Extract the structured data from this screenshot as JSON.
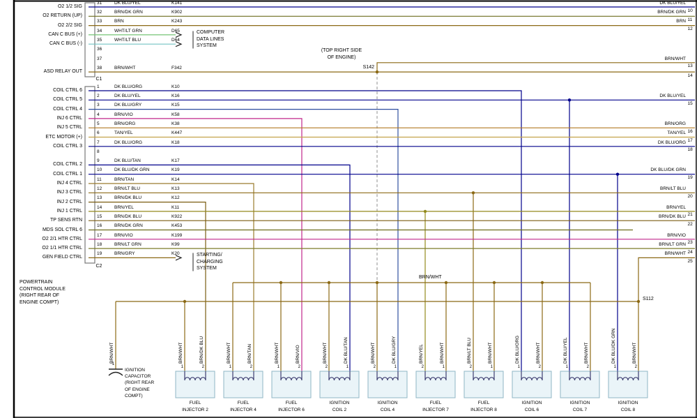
{
  "colors": {
    "DK BLU/YEL": "#00008B",
    "DK BLU/ORG": "#00008B",
    "DK BLU/GRY": "#2F4F9F",
    "DK BLU/TAN": "#00008B",
    "DK BLU/DK GRN": "#00008B",
    "BRN": "#8B6914",
    "BRN/WHT": "#8B6914",
    "BRN/DK GRN": "#6E6E1E",
    "BRN/ORG": "#B07820",
    "BRN/TAN": "#9A7B2D",
    "BRN/YEL": "#938A1C",
    "BRN/VIO": "#C2268B",
    "BRN/LT BLU": "#8B6914",
    "BRN/DK BLU": "#7A5C10",
    "BRN/GRY": "#8B6914",
    "BRN/LT GRN": "#7E7E2A",
    "TAN/YEL": "#C3A24B",
    "WHT/LT GRN": "#74C474",
    "WHT/LT BLU": "#74C4C4"
  },
  "pcm": {
    "c1_label": "C1",
    "c2_label": "C2",
    "title_lines": [
      "POWERTRAIN",
      "CONTROL MODULE",
      "(RIGHT REAR OF",
      "ENGINE COMPT)"
    ],
    "c1_rows": [
      {
        "pin": "31",
        "label": "O2 1/2 SIG",
        "color": "DK BLU/YEL",
        "code": "K141",
        "to": "edge",
        "num": "10"
      },
      {
        "pin": "32",
        "label": "O2 RETURN (UP)",
        "color": "BRN/DK GRN",
        "code": "K902",
        "to": "edge",
        "num": "11"
      },
      {
        "pin": "33",
        "label": "O2 2/2 SIG",
        "color": "BRN",
        "code": "K243",
        "to": "edge",
        "num": "12"
      },
      {
        "pin": "34",
        "label": "CAN C BUS (+)",
        "color": "WHT/LT GRN",
        "code": "D65",
        "to": "arrow"
      },
      {
        "pin": "35",
        "label": "CAN C BUS (-)",
        "color": "WHT/LT BLU",
        "code": "D64",
        "to": "arrow"
      },
      {
        "pin": "36"
      },
      {
        "pin": "37"
      },
      {
        "pin": "38",
        "label": "ASD RELAY OUT",
        "color": "BRN/WHT",
        "code": "F342",
        "to": "s142",
        "edge_label": "BRN/WHT",
        "num_upper": "13",
        "num_lower": "14"
      }
    ],
    "c2_rows": [
      {
        "pin": "1",
        "label": "COIL CTRL 6",
        "color": "DK BLU/ORG",
        "code": "K10",
        "to": "drop",
        "comp": 7
      },
      {
        "pin": "2",
        "label": "COIL CTRL 5",
        "color": "DK BLU/YEL",
        "code": "K16",
        "to": "edge+drop",
        "num": "15",
        "comp": 8
      },
      {
        "pin": "3",
        "label": "COIL CTRL 4",
        "color": "DK BLU/GRY",
        "code": "K15",
        "to": "drop",
        "comp": 4
      },
      {
        "pin": "4",
        "label": "INJ 6 CTRL",
        "color": "BRN/VIO",
        "code": "K58",
        "to": "drop",
        "comp": 2
      },
      {
        "pin": "5",
        "label": "INJ 5 CTRL",
        "color": "BRN/ORG",
        "code": "K38",
        "to": "edge",
        "num": "16"
      },
      {
        "pin": "6",
        "label": "ETC MOTOR (+)",
        "color": "TAN/YEL",
        "code": "K447",
        "to": "edge",
        "num": "17"
      },
      {
        "pin": "7",
        "label": "COIL CTRL 3",
        "color": "DK BLU/ORG",
        "code": "K18",
        "to": "edge",
        "num": "18"
      },
      {
        "pin": "8"
      },
      {
        "pin": "9",
        "label": "COIL CTRL 2",
        "color": "DK BLU/TAN",
        "code": "K17",
        "to": "drop",
        "comp": 3
      },
      {
        "pin": "10",
        "label": "COIL CTRL 1",
        "color": "DK BLU/DK GRN",
        "code": "K19",
        "to": "edge+drop",
        "num": "19",
        "comp": 9
      },
      {
        "pin": "11",
        "label": "INJ 4 CTRL",
        "color": "BRN/TAN",
        "code": "K14",
        "to": "drop",
        "comp": 1
      },
      {
        "pin": "12",
        "label": "INJ 3 CTRL",
        "color": "BRN/LT BLU",
        "code": "K13",
        "to": "edge+drop",
        "num": "20",
        "comp": 6
      },
      {
        "pin": "13",
        "label": "INJ 2 CTRL",
        "color": "BRN/DK BLU",
        "code": "K12",
        "to": "drop",
        "comp": 0
      },
      {
        "pin": "14",
        "label": "INJ 1 CTRL",
        "color": "BRN/YEL",
        "code": "K11",
        "to": "edge+drop",
        "num": "21",
        "comp": 5
      },
      {
        "pin": "15",
        "label": "TP SENS RTN",
        "color": "BRN/DK BLU",
        "code": "K922",
        "to": "edge",
        "num": "22"
      },
      {
        "pin": "16",
        "label": "MDS SOL CTRL 6",
        "color": "BRN/DK GRN",
        "code": "K453",
        "to": "end"
      },
      {
        "pin": "17",
        "label": "O2 2/1 HTR CTRL",
        "color": "BRN/VIO",
        "code": "K199",
        "to": "edge",
        "num": "23"
      },
      {
        "pin": "18",
        "label": "O2 1/1 HTR CTRL",
        "color": "BRN/LT GRN",
        "code": "K99",
        "to": "edge",
        "num": "24"
      },
      {
        "pin": "19",
        "label": "GEN FIELD CTRL",
        "color": "BRN/GRY",
        "code": "K20",
        "to": "arrow"
      }
    ]
  },
  "annotations": {
    "top_right_lines": [
      "(TOP RIGHT SIDE",
      "OF ENGINE)"
    ],
    "s142": "S142",
    "s112": "S112",
    "bus_label": "BRN/WHT",
    "s112_edge": {
      "label": "BRN/WHT",
      "num": "25"
    },
    "computer_lines": [
      "COMPUTER",
      "DATA LINES",
      "SYSTEM"
    ],
    "starting_lines": [
      "STARTING/",
      "CHARGING",
      "SYSTEM"
    ]
  },
  "capacitor": {
    "pin": "1",
    "color": "BRN/WHT",
    "label_lines": [
      "IGNITION",
      "CAPACITOR",
      "(RIGHT REAR",
      "OF ENGINE",
      "COMPT)"
    ]
  },
  "components": [
    {
      "label": [
        "FUEL",
        "INJECTOR 2"
      ],
      "pins": [
        {
          "num": "1",
          "color": "BRN/WHT",
          "bus": "B"
        },
        {
          "num": "2",
          "color": "BRN/DK BLU"
        }
      ]
    },
    {
      "label": [
        "FUEL",
        "INJECTOR 4"
      ],
      "pins": [
        {
          "num": "1",
          "color": "BRN/WHT",
          "bus": "A"
        },
        {
          "num": "2",
          "color": "BRN/TAN"
        }
      ]
    },
    {
      "label": [
        "FUEL",
        "INJECTOR 6"
      ],
      "pins": [
        {
          "num": "1",
          "color": "BRN/WHT",
          "bus": "A"
        },
        {
          "num": "2",
          "color": "BRN/VIO"
        }
      ]
    },
    {
      "label": [
        "IGNITION",
        "COIL 2"
      ],
      "pins": [
        {
          "num": "2",
          "color": "BRN/WHT",
          "bus": "A"
        },
        {
          "num": "1",
          "color": "DK BLU/TAN"
        }
      ]
    },
    {
      "label": [
        "IGNITION",
        "COIL 4"
      ],
      "pins": [
        {
          "num": "2",
          "color": "BRN/WHT",
          "bus": "A"
        },
        {
          "num": "1",
          "color": "DK BLU/GRY"
        }
      ]
    },
    {
      "label": [
        "FUEL",
        "INJECTOR 7"
      ],
      "pins": [
        {
          "num": "2",
          "color": "BRN/YEL"
        },
        {
          "num": "1",
          "color": "BRN/WHT",
          "bus": "A"
        }
      ]
    },
    {
      "label": [
        "FUEL",
        "INJECTOR 8"
      ],
      "pins": [
        {
          "num": "2",
          "color": "BRN/LT BLU"
        },
        {
          "num": "1",
          "color": "BRN/WHT",
          "bus": "A"
        }
      ]
    },
    {
      "label": [
        "IGNITION",
        "COIL 6"
      ],
      "pins": [
        {
          "num": "1",
          "color": "DK BLU/ORG"
        },
        {
          "num": "2",
          "color": "BRN/WHT",
          "bus": "A"
        }
      ]
    },
    {
      "label": [
        "IGNITION",
        "COIL 7"
      ],
      "pins": [
        {
          "num": "1",
          "color": "DK BLU/YEL"
        },
        {
          "num": "2",
          "color": "BRN/WHT",
          "bus": "A"
        }
      ]
    },
    {
      "label": [
        "IGNITION",
        "COIL 8"
      ],
      "pins": [
        {
          "num": "1",
          "color": "DK BLU/DK GRN"
        },
        {
          "num": "2",
          "color": "BRN/WHT",
          "bus": "B"
        }
      ]
    }
  ]
}
